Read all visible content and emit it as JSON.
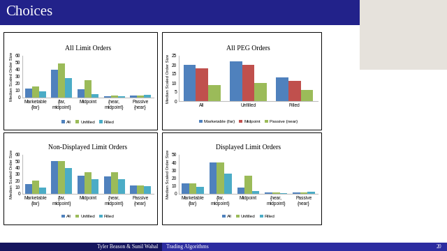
{
  "slide_title": "Choices",
  "footer": {
    "authors": "Tyler Beason & Sunil Wahal",
    "talk": "Trading Algorithms",
    "page": 20
  },
  "chart_data": [
    {
      "type": "bar",
      "title": "All Limit Orders",
      "y_label": "Median Scaled Order Size",
      "categories": [
        "Marketable\n{far}",
        "{far,\nmidpoint}",
        "Midpoint",
        "{near,\nmidpoint}",
        "Passive\n{near}"
      ],
      "series": [
        {
          "name": "All",
          "color": "#4f81bd",
          "values": [
            13,
            40,
            12,
            2,
            3
          ]
        },
        {
          "name": "Unfilled",
          "color": "#9bbb59",
          "values": [
            16,
            49,
            25,
            3,
            3
          ]
        },
        {
          "name": "Filled",
          "color": "#4bacc6",
          "values": [
            9,
            28,
            5,
            2,
            4
          ]
        }
      ],
      "ylim": [
        0,
        60
      ],
      "yticks": [
        0,
        10,
        20,
        30,
        40,
        50,
        60
      ],
      "grid": false,
      "legend": "lower center"
    },
    {
      "type": "bar",
      "title": "All PEG Orders",
      "y_label": "Median Scaled Order Size",
      "categories": [
        "All",
        "Unfilled",
        "Filled"
      ],
      "series": [
        {
          "name": "Marketable {far}",
          "color": "#4f81bd",
          "values": [
            20,
            22,
            13
          ]
        },
        {
          "name": "Midpoint",
          "color": "#c0504d",
          "values": [
            18,
            20,
            11
          ]
        },
        {
          "name": "Passive {near}",
          "color": "#9bbb59",
          "values": [
            9,
            10,
            6
          ]
        }
      ],
      "ylim": [
        0,
        25
      ],
      "yticks": [
        0,
        5,
        10,
        15,
        20,
        25
      ],
      "grid": false,
      "legend": "lower center"
    },
    {
      "type": "bar",
      "title": "Non-Displayed Limit Orders",
      "y_label": "Median Scaled Order Size",
      "categories": [
        "Marketable\n{far}",
        "{far,\nmidpoint}",
        "Midpoint",
        "{near,\nmidpoint}",
        "Passive\n{near}"
      ],
      "series": [
        {
          "name": "All",
          "color": "#4f81bd",
          "values": [
            15,
            50,
            28,
            27,
            13
          ]
        },
        {
          "name": "Unfilled",
          "color": "#9bbb59",
          "values": [
            20,
            50,
            33,
            33,
            13
          ]
        },
        {
          "name": "Filled",
          "color": "#4bacc6",
          "values": [
            10,
            40,
            22,
            23,
            12
          ]
        }
      ],
      "ylim": [
        0,
        60
      ],
      "yticks": [
        0,
        10,
        20,
        30,
        40,
        50,
        60
      ],
      "grid": false,
      "legend": "lower center"
    },
    {
      "type": "bar",
      "title": "Displayed Limit Orders",
      "y_label": "Median Scaled Order Size",
      "categories": [
        "Marketable\n{far}",
        "{far,\nmidpoint}",
        "Midpoint",
        "{near,\nmidpoint}",
        "Passive\n{near}"
      ],
      "series": [
        {
          "name": "All",
          "color": "#4f81bd",
          "values": [
            13,
            40,
            8,
            2,
            2
          ]
        },
        {
          "name": "Unfilled",
          "color": "#9bbb59",
          "values": [
            13,
            40,
            23,
            2,
            2
          ]
        },
        {
          "name": "Filled",
          "color": "#4bacc6",
          "values": [
            9,
            26,
            4,
            1,
            3
          ]
        }
      ],
      "ylim": [
        0,
        50
      ],
      "yticks": [
        0,
        10,
        20,
        30,
        40,
        50
      ],
      "grid": false,
      "legend": "lower center"
    }
  ]
}
